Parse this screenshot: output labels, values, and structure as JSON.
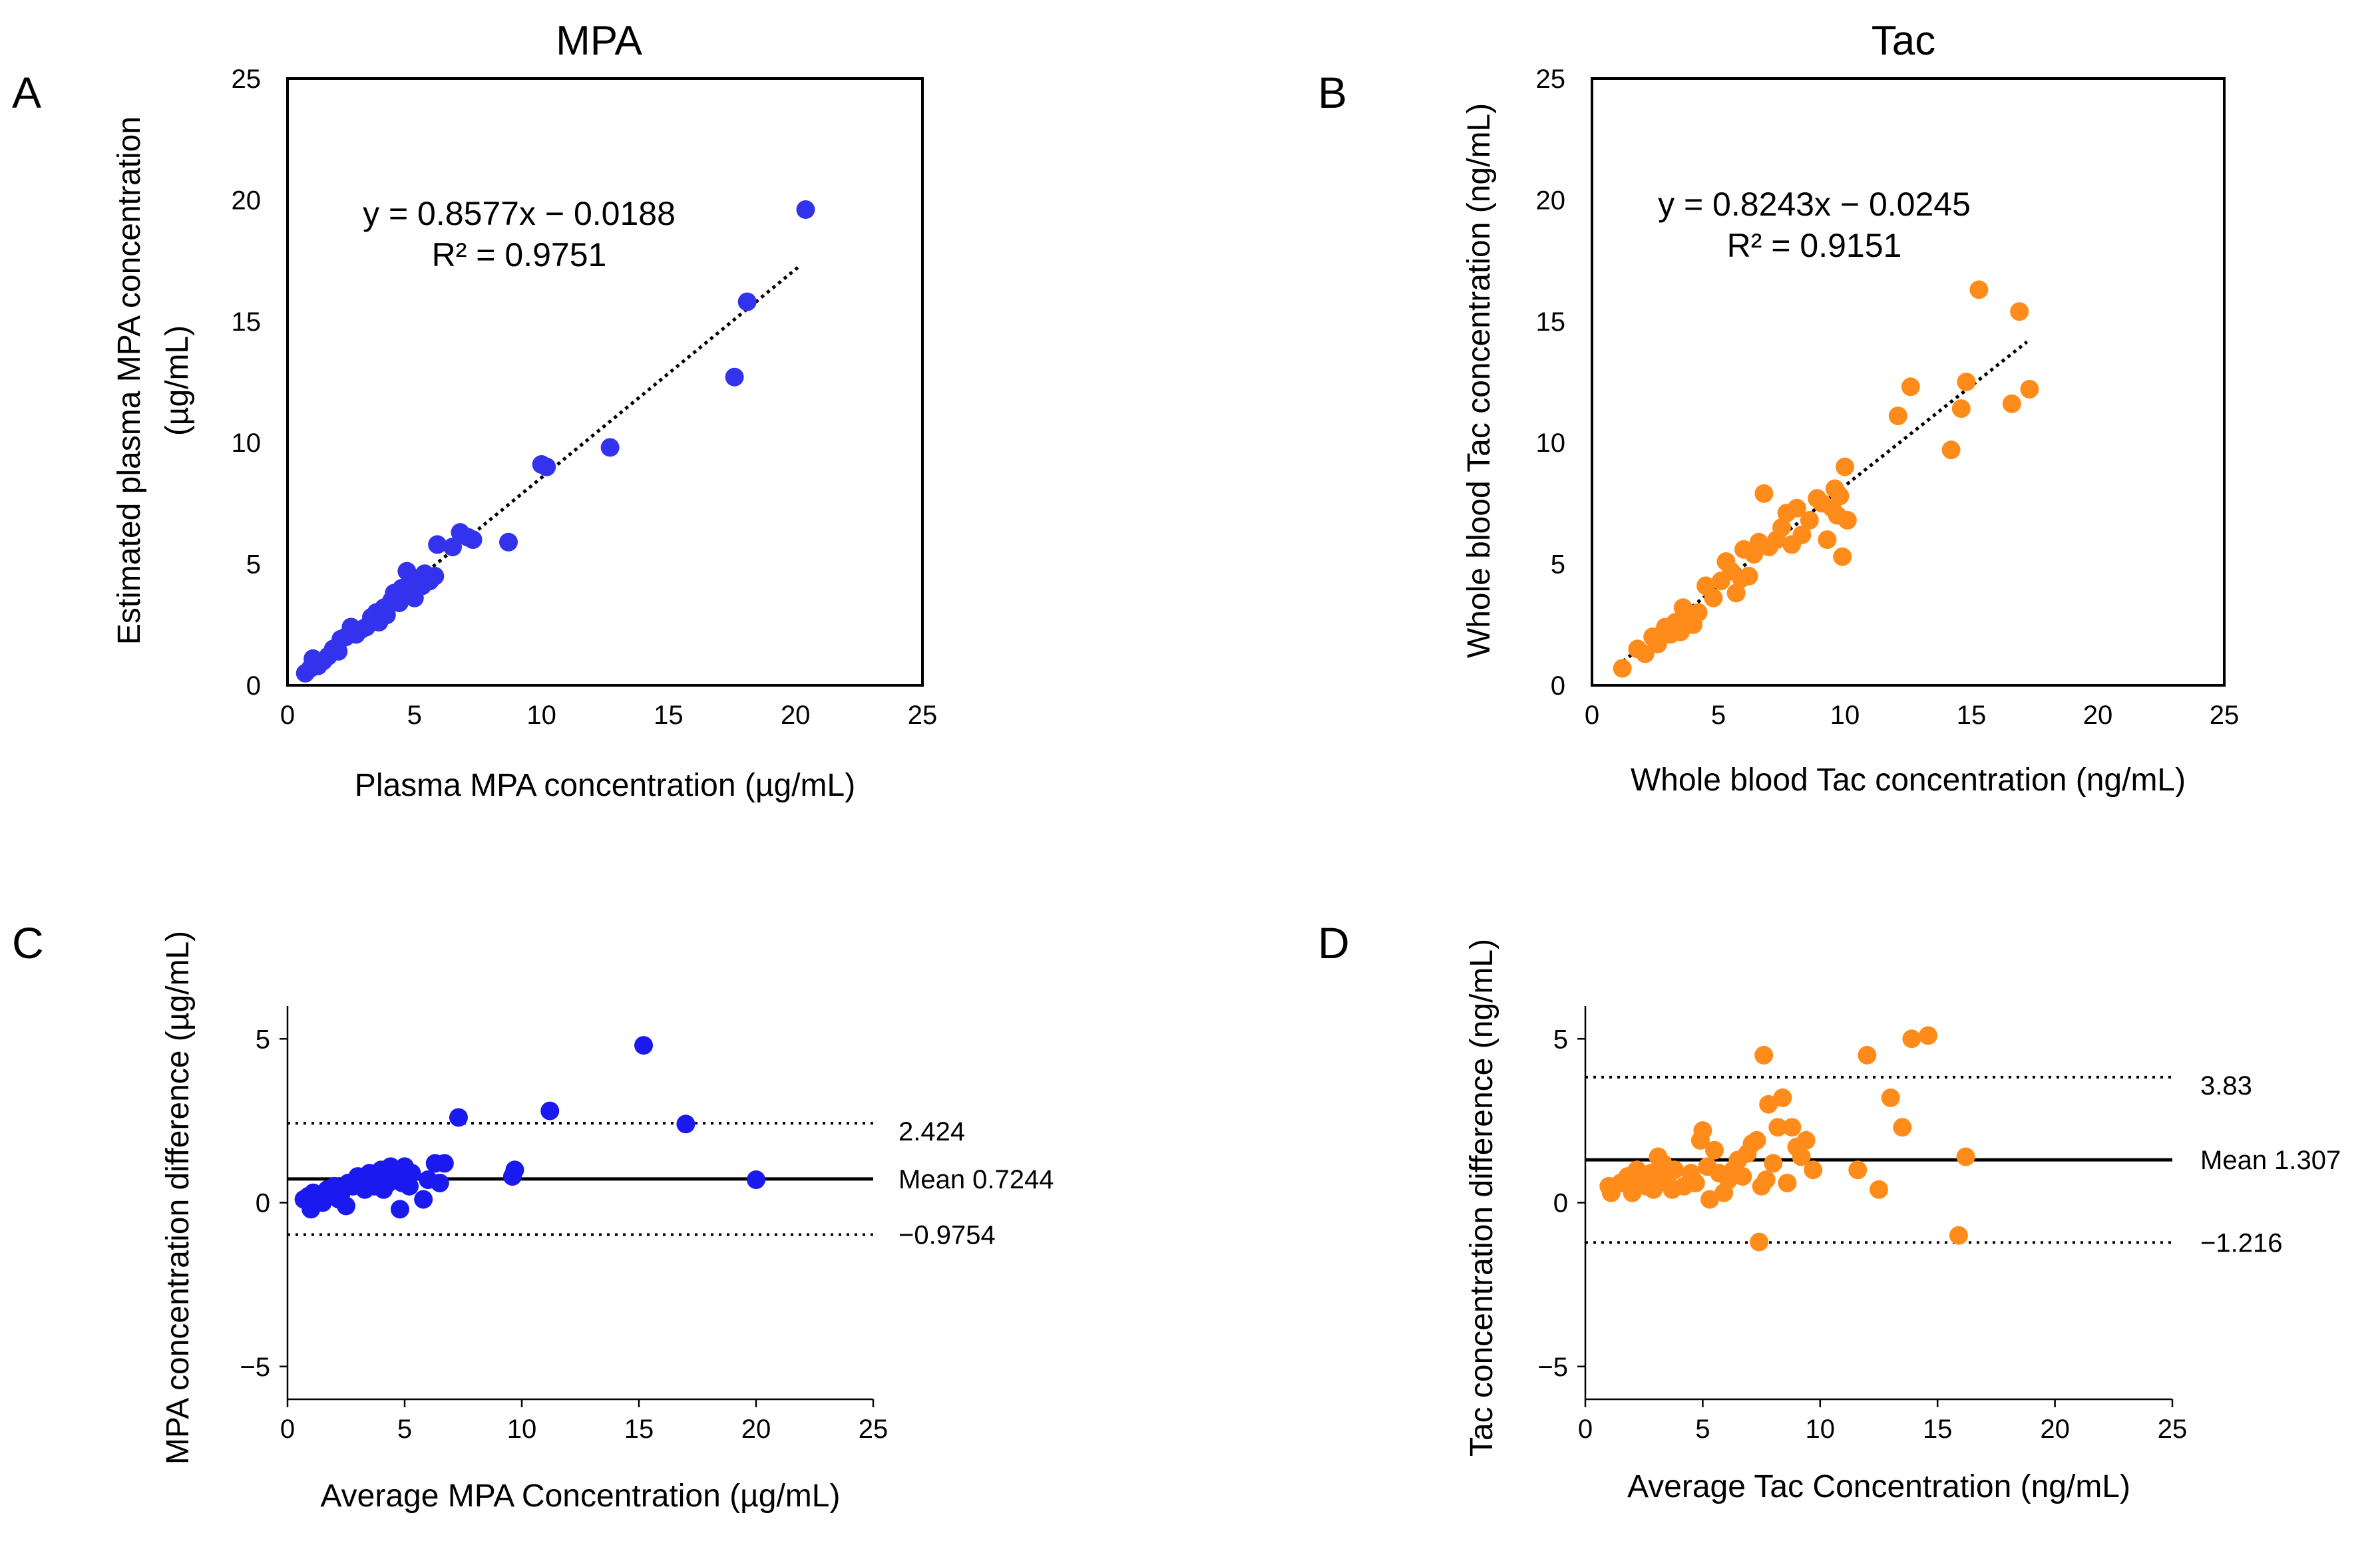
{
  "colors": {
    "mpa": "#3333ee",
    "tac": "#ff8c1a",
    "axis": "#000000"
  },
  "chart_data": [
    {
      "type": "scatter",
      "panel": "A",
      "title": "MPA",
      "xlabel": "Plasma MPA concentration (µg/mL)",
      "ylabel_lines": [
        "Estimated plasma MPA concentration",
        "(µg/mL)"
      ],
      "xlim": [
        0,
        25
      ],
      "ylim": [
        0,
        25
      ],
      "xticks": [
        0,
        5,
        10,
        15,
        20,
        25
      ],
      "yticks": [
        0,
        5,
        10,
        15,
        20,
        25
      ],
      "frame": "box",
      "equation": "y = 0.8577x − 0.0188",
      "r2": "R² = 0.9751",
      "trendline": {
        "slope": 0.8577,
        "intercept": -0.0188,
        "x_range": [
          0.6,
          20.2
        ],
        "style": "dotted"
      },
      "color": "#3333ee",
      "points": [
        [
          0.7,
          0.5
        ],
        [
          0.9,
          0.7
        ],
        [
          1.0,
          1.1
        ],
        [
          1.2,
          0.8
        ],
        [
          1.4,
          1.0
        ],
        [
          1.6,
          1.2
        ],
        [
          1.8,
          1.5
        ],
        [
          2.0,
          1.4
        ],
        [
          2.1,
          1.9
        ],
        [
          2.3,
          2.0
        ],
        [
          2.5,
          2.4
        ],
        [
          2.7,
          2.1
        ],
        [
          2.9,
          2.3
        ],
        [
          3.1,
          2.4
        ],
        [
          3.3,
          2.8
        ],
        [
          3.5,
          3.0
        ],
        [
          3.6,
          2.6
        ],
        [
          3.8,
          3.2
        ],
        [
          3.9,
          2.9
        ],
        [
          4.1,
          3.5
        ],
        [
          4.2,
          3.8
        ],
        [
          4.4,
          3.4
        ],
        [
          4.5,
          4.0
        ],
        [
          4.6,
          3.7
        ],
        [
          4.7,
          4.7
        ],
        [
          4.8,
          4.2
        ],
        [
          5.0,
          3.6
        ],
        [
          5.1,
          4.4
        ],
        [
          5.3,
          4.1
        ],
        [
          5.4,
          4.6
        ],
        [
          5.6,
          4.3
        ],
        [
          5.8,
          4.5
        ],
        [
          5.9,
          5.8
        ],
        [
          6.5,
          5.7
        ],
        [
          6.8,
          6.3
        ],
        [
          7.1,
          6.1
        ],
        [
          7.3,
          6.0
        ],
        [
          8.7,
          5.9
        ],
        [
          10.0,
          9.1
        ],
        [
          10.2,
          9.0
        ],
        [
          12.7,
          9.8
        ],
        [
          17.6,
          12.7
        ],
        [
          18.1,
          15.8
        ],
        [
          20.4,
          19.6
        ]
      ]
    },
    {
      "type": "scatter",
      "panel": "B",
      "title": "Tac",
      "xlabel": "Whole blood Tac concentration (ng/mL)",
      "ylabel_lines": [
        "Whole blood Tac concentration (ng/mL)"
      ],
      "xlim": [
        0,
        25
      ],
      "ylim": [
        0,
        25
      ],
      "xticks": [
        0,
        5,
        10,
        15,
        20,
        25
      ],
      "yticks": [
        0,
        5,
        10,
        15,
        20,
        25
      ],
      "frame": "box",
      "equation": "y = 0.8243x − 0.0245",
      "r2": "R² = 0.9151",
      "trendline": {
        "slope": 0.8243,
        "intercept": -0.0245,
        "x_range": [
          1.0,
          17.2
        ],
        "style": "dotted"
      },
      "color": "#ff8c1a",
      "points": [
        [
          1.2,
          0.7
        ],
        [
          1.8,
          1.5
        ],
        [
          2.1,
          1.3
        ],
        [
          2.4,
          2.0
        ],
        [
          2.6,
          1.7
        ],
        [
          2.9,
          2.4
        ],
        [
          3.1,
          2.1
        ],
        [
          3.3,
          2.6
        ],
        [
          3.5,
          2.2
        ],
        [
          3.6,
          3.2
        ],
        [
          3.8,
          2.8
        ],
        [
          4.0,
          2.5
        ],
        [
          4.2,
          3.0
        ],
        [
          4.5,
          4.1
        ],
        [
          4.8,
          3.6
        ],
        [
          5.1,
          4.3
        ],
        [
          5.3,
          5.1
        ],
        [
          5.5,
          4.7
        ],
        [
          5.7,
          3.8
        ],
        [
          5.9,
          4.4
        ],
        [
          6.0,
          5.6
        ],
        [
          6.2,
          4.5
        ],
        [
          6.4,
          5.4
        ],
        [
          6.6,
          5.9
        ],
        [
          6.8,
          7.9
        ],
        [
          7.0,
          5.7
        ],
        [
          7.3,
          6.0
        ],
        [
          7.5,
          6.5
        ],
        [
          7.7,
          7.1
        ],
        [
          7.9,
          5.8
        ],
        [
          8.1,
          7.3
        ],
        [
          8.3,
          6.2
        ],
        [
          8.6,
          6.8
        ],
        [
          8.9,
          7.7
        ],
        [
          9.1,
          7.5
        ],
        [
          9.3,
          6.0
        ],
        [
          9.5,
          7.3
        ],
        [
          9.6,
          8.1
        ],
        [
          9.7,
          7.0
        ],
        [
          9.8,
          7.8
        ],
        [
          9.9,
          5.3
        ],
        [
          10.0,
          9.0
        ],
        [
          10.1,
          6.8
        ],
        [
          12.1,
          11.1
        ],
        [
          12.6,
          12.3
        ],
        [
          14.2,
          9.7
        ],
        [
          14.6,
          11.4
        ],
        [
          14.8,
          12.5
        ],
        [
          15.3,
          16.3
        ],
        [
          16.6,
          11.6
        ],
        [
          16.9,
          15.4
        ],
        [
          17.3,
          12.2
        ]
      ]
    },
    {
      "type": "scatter",
      "panel": "C",
      "xlabel": "Average MPA Concentration  (µg/mL)",
      "ylabel_lines": [
        "MPA concentration difference (µg/mL)"
      ],
      "xlim": [
        0,
        25
      ],
      "ylim": [
        -6,
        6
      ],
      "xticks": [
        0,
        5,
        10,
        15,
        20,
        25
      ],
      "yticks": [
        -5,
        0,
        5
      ],
      "ytick_labels": [
        "−5",
        "0",
        "5"
      ],
      "frame": "axes",
      "mean": 0.7244,
      "upper_loa": 2.424,
      "lower_loa": -0.9754,
      "labels": {
        "upper": "2.424",
        "mean": "Mean 0.7244",
        "lower": "−0.9754"
      },
      "color": "#1a1aee",
      "points": [
        [
          0.7,
          0.1
        ],
        [
          0.9,
          0.2
        ],
        [
          1.0,
          -0.2
        ],
        [
          1.1,
          0.3
        ],
        [
          1.3,
          0.1
        ],
        [
          1.5,
          0.0
        ],
        [
          1.7,
          0.4
        ],
        [
          1.9,
          0.2
        ],
        [
          2.0,
          0.5
        ],
        [
          2.2,
          0.1
        ],
        [
          2.3,
          0.3
        ],
        [
          2.5,
          -0.1
        ],
        [
          2.6,
          0.6
        ],
        [
          2.8,
          0.5
        ],
        [
          3.0,
          0.8
        ],
        [
          3.2,
          0.7
        ],
        [
          3.3,
          0.4
        ],
        [
          3.5,
          0.9
        ],
        [
          3.7,
          0.5
        ],
        [
          3.8,
          0.6
        ],
        [
          4.0,
          1.0
        ],
        [
          4.1,
          0.4
        ],
        [
          4.2,
          0.8
        ],
        [
          4.3,
          0.6
        ],
        [
          4.4,
          1.1
        ],
        [
          4.5,
          0.7
        ],
        [
          4.6,
          0.9
        ],
        [
          4.7,
          0.8
        ],
        [
          4.8,
          -0.2
        ],
        [
          4.9,
          0.6
        ],
        [
          5.0,
          1.1
        ],
        [
          5.2,
          0.5
        ],
        [
          5.3,
          0.9
        ],
        [
          5.8,
          0.1
        ],
        [
          6.0,
          0.7
        ],
        [
          6.3,
          1.2
        ],
        [
          6.5,
          0.6
        ],
        [
          6.7,
          1.2
        ],
        [
          7.3,
          2.6
        ],
        [
          9.6,
          0.8
        ],
        [
          9.7,
          1.0
        ],
        [
          11.2,
          2.8
        ],
        [
          15.2,
          4.8
        ],
        [
          17.0,
          2.4
        ],
        [
          20.0,
          0.7
        ]
      ]
    },
    {
      "type": "scatter",
      "panel": "D",
      "xlabel": "Average Tac Concentration  (ng/mL)",
      "ylabel_lines": [
        "Tac concentration difference (ng/mL)"
      ],
      "xlim": [
        0,
        25
      ],
      "ylim": [
        -6,
        6
      ],
      "xticks": [
        0,
        5,
        10,
        15,
        20,
        25
      ],
      "yticks": [
        -5,
        0,
        5
      ],
      "ytick_labels": [
        "−5",
        "0",
        "5"
      ],
      "frame": "axes",
      "mean": 1.307,
      "upper_loa": 3.83,
      "lower_loa": -1.216,
      "labels": {
        "upper": "3.83",
        "mean": "Mean 1.307",
        "lower": "−1.216"
      },
      "color": "#ff8c1a",
      "points": [
        [
          1.0,
          0.5
        ],
        [
          1.1,
          0.3
        ],
        [
          1.5,
          0.6
        ],
        [
          1.8,
          0.8
        ],
        [
          2.0,
          0.3
        ],
        [
          2.2,
          1.0
        ],
        [
          2.4,
          0.7
        ],
        [
          2.6,
          0.5
        ],
        [
          2.8,
          0.9
        ],
        [
          2.9,
          0.4
        ],
        [
          3.1,
          1.4
        ],
        [
          3.2,
          0.8
        ],
        [
          3.3,
          1.2
        ],
        [
          3.5,
          0.6
        ],
        [
          3.7,
          0.4
        ],
        [
          3.8,
          1.0
        ],
        [
          4.2,
          0.5
        ],
        [
          4.5,
          0.9
        ],
        [
          4.7,
          0.6
        ],
        [
          4.9,
          1.9
        ],
        [
          5.0,
          2.2
        ],
        [
          5.2,
          1.1
        ],
        [
          5.3,
          0.1
        ],
        [
          5.5,
          1.6
        ],
        [
          5.7,
          0.9
        ],
        [
          5.9,
          0.3
        ],
        [
          6.1,
          0.7
        ],
        [
          6.3,
          1.0
        ],
        [
          6.5,
          1.3
        ],
        [
          6.7,
          0.8
        ],
        [
          6.9,
          1.5
        ],
        [
          7.1,
          1.8
        ],
        [
          7.3,
          1.9
        ],
        [
          7.4,
          -1.2
        ],
        [
          7.5,
          0.5
        ],
        [
          7.6,
          4.5
        ],
        [
          7.7,
          0.7
        ],
        [
          7.8,
          3.0
        ],
        [
          8.0,
          1.2
        ],
        [
          8.2,
          2.3
        ],
        [
          8.4,
          3.2
        ],
        [
          8.6,
          0.6
        ],
        [
          8.8,
          2.3
        ],
        [
          9.0,
          1.7
        ],
        [
          9.2,
          1.4
        ],
        [
          9.4,
          1.9
        ],
        [
          9.7,
          1.0
        ],
        [
          11.6,
          1.0
        ],
        [
          12.0,
          4.5
        ],
        [
          12.5,
          0.4
        ],
        [
          13.0,
          3.2
        ],
        [
          13.5,
          2.3
        ],
        [
          13.9,
          5.0
        ],
        [
          14.6,
          5.1
        ],
        [
          15.9,
          -1.0
        ],
        [
          16.2,
          1.4
        ]
      ]
    }
  ]
}
